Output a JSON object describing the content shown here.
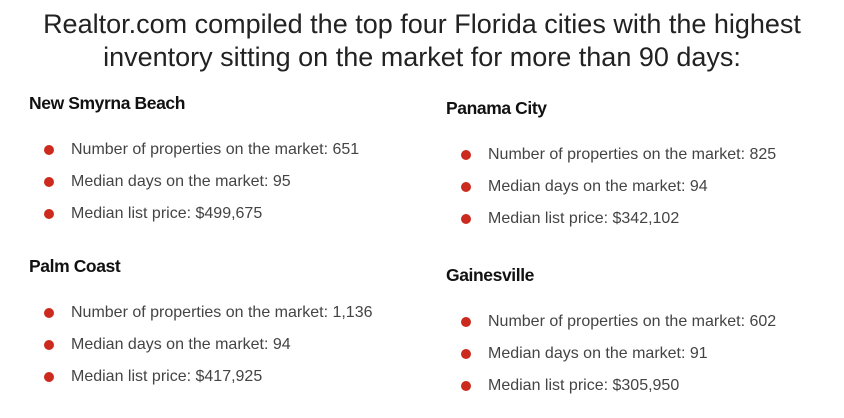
{
  "headline": {
    "line1": "Realtor.com compiled the top four Florida cities with the highest",
    "line2": "inventory sitting on the market for more than 90 days:"
  },
  "bullet_color": "#cc2a1e",
  "cities": [
    {
      "name": "New Smyrna Beach",
      "stats": [
        "Number of properties on the market: 651",
        "Median days on the market: 95",
        "Median list price: $499,675"
      ]
    },
    {
      "name": "Palm Coast",
      "stats": [
        "Number of properties on the market: 1,136",
        "Median days on the market: 94",
        "Median list price: $417,925"
      ]
    },
    {
      "name": "Panama City",
      "stats": [
        "Number of properties on the market: 825",
        "Median days on the market: 94",
        "Median list price: $342,102"
      ]
    },
    {
      "name": "Gainesville",
      "stats": [
        "Number of properties on the market: 602",
        "Median days on the market: 91",
        "Median list price: $305,950"
      ]
    }
  ]
}
